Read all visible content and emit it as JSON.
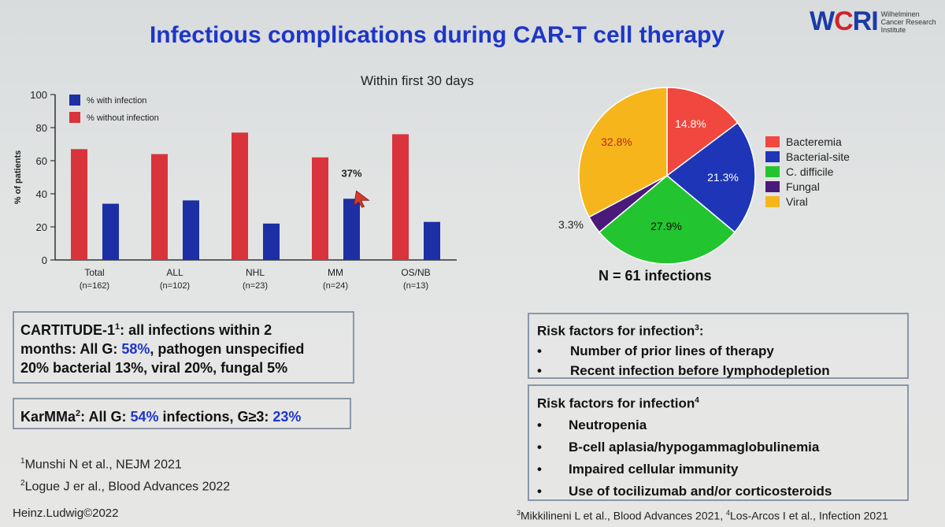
{
  "title": "Infectious complications during CAR-T cell therapy",
  "logo": {
    "mark_w": "W",
    "mark_c": "C",
    "mark_ri": "RI",
    "lines": [
      "Wilhelminen",
      "Cancer Research",
      "Institute"
    ]
  },
  "subtitle": "Within first 30 days",
  "chart_data": [
    {
      "type": "bar",
      "categories": [
        "Total",
        "ALL",
        "NHL",
        "MM",
        "OS/NB"
      ],
      "category_sub": [
        "(n=162)",
        "(n=102)",
        "(n=23)",
        "(n=24)",
        "(n=13)"
      ],
      "series": [
        {
          "name": "% without infection",
          "values": [
            67,
            64,
            77,
            62,
            76
          ],
          "color": "#d9343c"
        },
        {
          "name": "% with infection",
          "values": [
            34,
            36,
            22,
            37,
            23
          ],
          "color": "#1c2fa5"
        }
      ],
      "ylabel": "% of patients",
      "ylim": [
        0,
        100
      ],
      "yticks": [
        0,
        20,
        40,
        60,
        80,
        100
      ],
      "annotation": "37%",
      "legend": "top-left"
    },
    {
      "type": "pie",
      "labels": [
        "Bacteremia",
        "Bacterial-site",
        "C. difficile",
        "Fungal",
        "Viral"
      ],
      "values": [
        14.8,
        21.3,
        27.9,
        3.3,
        32.8
      ],
      "value_labels": [
        "14.8%",
        "21.3%",
        "27.9%",
        "3.3%",
        "32.8%"
      ],
      "colors": [
        "#f0473f",
        "#1e35b8",
        "#22c52f",
        "#4a1a7a",
        "#f7b51c"
      ],
      "note": "N = 61 infections",
      "legend": "right"
    }
  ],
  "box1": {
    "l1a": "CARTITUDE-1",
    "l1sup": "1",
    "l1b": ": all infections within 2",
    "l2a": "months: All G: ",
    "l2pct": "58%",
    "l2b": ", pathogen unspecified",
    "l3": "20% bacterial 13%,  viral 20%, fungal 5%"
  },
  "box2": {
    "a": "KarMMa",
    "sup": "2",
    "b": ": All G: ",
    "pct1": "54%",
    "c": " infections, G≥3: ",
    "pct2": "23%"
  },
  "refs": {
    "r1sup": "1",
    "r1": "Munshi N et al., NEJM 2021",
    "r2sup": "2",
    "r2": "Logue J er al., Blood Advances 2022"
  },
  "credit": "Heinz.Ludwig©2022",
  "risk1": {
    "title": "Risk factors for infection",
    "sup": "3",
    "colon": ":",
    "items": [
      "Number of prior lines of therapy",
      "Recent infection before lymphodepletion"
    ]
  },
  "risk2": {
    "title": "Risk factors for infection",
    "sup": "4",
    "items": [
      "Neutropenia",
      "B-cell aplasia/hypogammaglobulinemia",
      "Impaired cellular immunity",
      "Use of tocilizumab and/or corticosteroids"
    ]
  },
  "bullet_char": "•",
  "footnote": {
    "sup1": "3",
    "t1": "Mikkilineni L et al., Blood Advances 2021, ",
    "sup2": "4",
    "t2": "Los-Arcos I et al., Infection 2021"
  }
}
